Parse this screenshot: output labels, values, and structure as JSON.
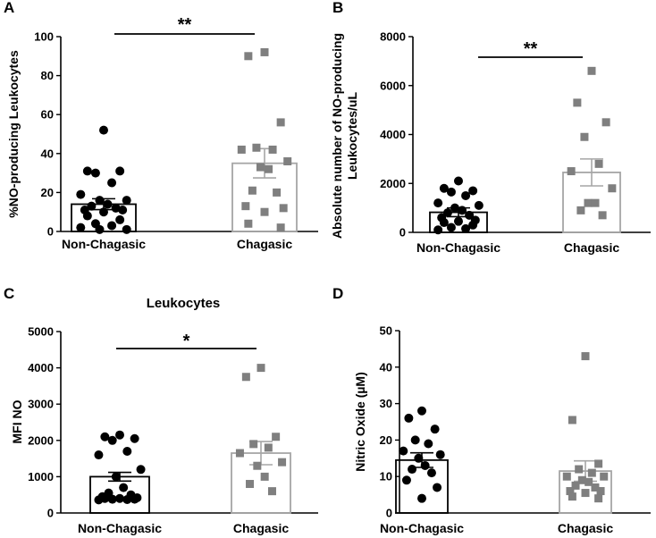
{
  "chart_data": [
    {
      "type": "bar",
      "panel_label": "A",
      "title": "",
      "ylabel": "%NO-producing Leukocytes",
      "ylim": [
        0,
        100
      ],
      "yticks": [
        0,
        20,
        40,
        60,
        80,
        100
      ],
      "categories": [
        "Non-Chagasic",
        "Chagasic"
      ],
      "series": [
        {
          "name": "Non-Chagasic",
          "mean": 14,
          "sem": 2.8,
          "points": [
            52,
            31,
            31,
            30,
            25,
            19,
            16,
            16,
            14,
            13,
            12,
            11,
            11,
            10,
            8,
            6,
            4,
            3,
            2,
            1,
            1
          ]
        },
        {
          "name": "Chagasic",
          "mean": 35,
          "sem": 7.5,
          "points": [
            92,
            90,
            56,
            43,
            42,
            42,
            36,
            33,
            32,
            21,
            20,
            13,
            12,
            10,
            4,
            2
          ]
        }
      ],
      "significance": "**"
    },
    {
      "type": "bar",
      "panel_label": "B",
      "title": "",
      "ylabel": "Absolute number of NO-producing Leukocytes/uL",
      "ylabel_lines": [
        "Absolute number of NO-producing",
        "Leukocytes/uL"
      ],
      "ylim": [
        0,
        8000
      ],
      "yticks": [
        0,
        2000,
        4000,
        6000,
        8000
      ],
      "categories": [
        "Non-Chagasic",
        "Chagasic"
      ],
      "series": [
        {
          "name": "Non-Chagasic",
          "mean": 820,
          "sem": 180,
          "points": [
            2100,
            1800,
            1700,
            1650,
            1500,
            1200,
            1100,
            1000,
            900,
            800,
            700,
            600,
            500,
            450,
            400,
            300,
            200,
            150,
            100
          ]
        },
        {
          "name": "Chagasic",
          "mean": 2450,
          "sem": 550,
          "points": [
            6600,
            5300,
            4500,
            3900,
            2800,
            2500,
            1800,
            1200,
            1200,
            900,
            700
          ]
        }
      ],
      "significance": "**"
    },
    {
      "type": "bar",
      "panel_label": "C",
      "title": "Leukocytes",
      "ylabel": "MFI NO",
      "ylim": [
        0,
        5000
      ],
      "yticks": [
        0,
        1000,
        2000,
        3000,
        4000,
        5000
      ],
      "categories": [
        "Non-Chagasic",
        "Chagasic"
      ],
      "series": [
        {
          "name": "Non-Chagasic",
          "mean": 1000,
          "sem": 120,
          "points": [
            2150,
            2100,
            2050,
            2000,
            1700,
            1600,
            1200,
            1000,
            700,
            550,
            500,
            450,
            420,
            400,
            400,
            380,
            380,
            370,
            360
          ]
        },
        {
          "name": "Chagasic",
          "mean": 1650,
          "sem": 320,
          "points": [
            4000,
            3750,
            2100,
            1900,
            1800,
            1650,
            1400,
            1300,
            1000,
            800,
            600
          ]
        }
      ],
      "significance": "*"
    },
    {
      "type": "bar",
      "panel_label": "D",
      "title": "",
      "ylabel": "Nitric Oxide (µM)",
      "ylim": [
        0,
        50
      ],
      "yticks": [
        0,
        10,
        20,
        30,
        40,
        50
      ],
      "categories": [
        "Non-Chagasic",
        "Chagasic"
      ],
      "series": [
        {
          "name": "Non-Chagasic",
          "mean": 14.5,
          "sem": 2.0,
          "points": [
            28,
            26,
            23,
            20,
            19,
            17,
            16,
            15,
            13,
            12,
            11,
            9,
            7,
            4
          ]
        },
        {
          "name": "Chagasic",
          "mean": 11.5,
          "sem": 2.8,
          "points": [
            43,
            25.5,
            13.5,
            12,
            11,
            10,
            10,
            9,
            8.5,
            7.5,
            7,
            6,
            6,
            5.5,
            4.5,
            4
          ]
        }
      ],
      "significance": ""
    }
  ],
  "colors": {
    "non_chagasic_marker": "#000000",
    "chagasic_marker": "#7f7f7f",
    "non_chagasic_bar": "#000000",
    "chagasic_bar": "#a6a6a6",
    "axis": "#000000"
  }
}
